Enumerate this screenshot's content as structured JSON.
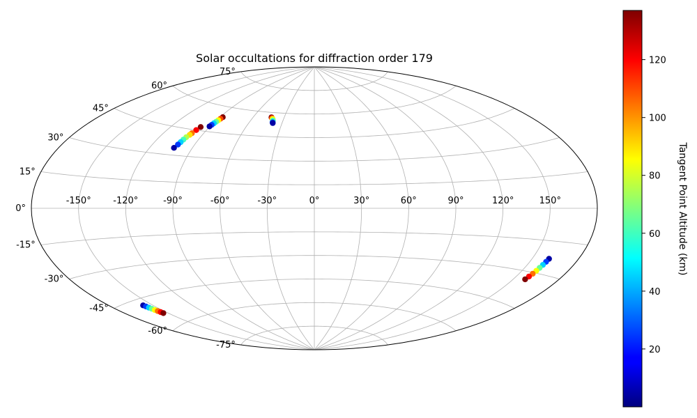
{
  "chart_data": {
    "type": "scatter",
    "projection": "aitoff",
    "title": "Solar occultations for diffraction order 179",
    "grid": true,
    "longitude_ticks": [
      -150,
      -120,
      -90,
      -60,
      -30,
      0,
      30,
      60,
      90,
      120,
      150
    ],
    "longitude_tick_labels": [
      "-150°",
      "-120°",
      "-90°",
      "-60°",
      "-30°",
      "0°",
      "30°",
      "60°",
      "90°",
      "120°",
      "150°"
    ],
    "latitude_ticks": [
      -75,
      -60,
      -45,
      -30,
      -15,
      0,
      15,
      30,
      45,
      60,
      75
    ],
    "latitude_tick_labels": [
      "-75°",
      "-60°",
      "-45°",
      "-30°",
      "-15°",
      "0°",
      "15°",
      "30°",
      "45°",
      "60°",
      "75°"
    ],
    "colorbar": {
      "label": "Tangent Point Altitude (km)",
      "range": [
        0,
        137
      ],
      "ticks": [
        20,
        40,
        60,
        80,
        100,
        120
      ],
      "tick_labels": [
        "20",
        "40",
        "60",
        "80",
        "100",
        "120"
      ],
      "colormap": "jet"
    },
    "series": [
      {
        "lon": [
          -97,
          -98,
          -99,
          -99.5,
          -100.5,
          -101,
          -101.5,
          -102,
          -103
        ],
        "lat": [
          47,
          45,
          43,
          42,
          40.5,
          39,
          37.5,
          36,
          34
        ],
        "altitude_km": [
          137,
          120,
          105,
          90,
          75,
          60,
          45,
          25,
          5
        ]
      },
      {
        "lon": [
          -87.5,
          -88,
          -88.5,
          -89,
          -89.5,
          -90,
          -90.5
        ],
        "lat": [
          54,
          53,
          52,
          51,
          50,
          49,
          48
        ],
        "altitude_km": [
          137,
          110,
          85,
          65,
          45,
          25,
          5
        ]
      },
      {
        "lon": [
          -42.5,
          -41.5,
          -40.5,
          -39.5,
          -39,
          -38.5
        ],
        "lat": [
          57,
          56.5,
          56,
          55,
          54,
          53.5
        ],
        "altitude_km": [
          137,
          110,
          85,
          60,
          30,
          5
        ]
      },
      {
        "lon": [
          -157,
          -156.5,
          -156,
          -155.5,
          -155,
          -154.5,
          -154,
          -153.5
        ],
        "lat": [
          -48,
          -48.8,
          -49.6,
          -50.4,
          -51.2,
          -52,
          -52.8,
          -53.5
        ],
        "altitude_km": [
          5,
          25,
          45,
          65,
          85,
          105,
          120,
          137
        ]
      },
      {
        "lon": [
          161,
          160.6,
          160.2,
          159.8,
          159.4,
          159,
          158.5,
          158
        ],
        "lat": [
          -23,
          -24.5,
          -26,
          -27.5,
          -29,
          -30.5,
          -32,
          -33.5
        ],
        "altitude_km": [
          5,
          25,
          45,
          65,
          85,
          105,
          120,
          137
        ]
      }
    ]
  }
}
